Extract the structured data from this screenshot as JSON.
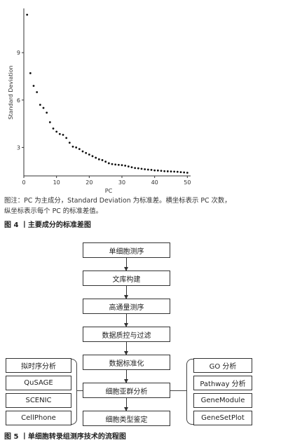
{
  "chart_data": {
    "type": "scatter",
    "title": "",
    "xlabel": "PC",
    "ylabel": "Standard Deviation",
    "xlim": [
      0,
      51
    ],
    "ylim": [
      1.2,
      11.8
    ],
    "xticks": [
      0,
      10,
      20,
      30,
      40,
      50
    ],
    "yticks": [
      3,
      6,
      9
    ],
    "grid": false,
    "x": [
      1,
      2,
      3,
      4,
      5,
      6,
      7,
      8,
      9,
      10,
      11,
      12,
      13,
      14,
      15,
      16,
      17,
      18,
      19,
      20,
      21,
      22,
      23,
      24,
      25,
      26,
      27,
      28,
      29,
      30,
      31,
      32,
      33,
      34,
      35,
      36,
      37,
      38,
      39,
      40,
      41,
      42,
      43,
      44,
      45,
      46,
      47,
      48,
      49,
      50
    ],
    "y": [
      11.4,
      7.7,
      6.9,
      6.5,
      5.7,
      5.5,
      5.2,
      4.6,
      4.2,
      4.0,
      3.85,
      3.8,
      3.6,
      3.3,
      3.05,
      3.0,
      2.9,
      2.75,
      2.65,
      2.55,
      2.45,
      2.35,
      2.25,
      2.2,
      2.1,
      2.0,
      1.95,
      1.92,
      1.9,
      1.88,
      1.85,
      1.8,
      1.75,
      1.7,
      1.68,
      1.65,
      1.62,
      1.6,
      1.58,
      1.55,
      1.54,
      1.52,
      1.5,
      1.49,
      1.48,
      1.47,
      1.46,
      1.44,
      1.42,
      1.4
    ]
  },
  "fig4": {
    "note_line1": "图注：PC 为主成分，Standard Deviation 为标准差。横坐标表示 PC 次数，",
    "note_line2": "纵坐标表示每个 PC 的标准差值。",
    "title": "图 4  丨主要成分的标准差图"
  },
  "fig5": {
    "title": "图 5  丨单细胞转录组测序技术的流程图",
    "main_steps": [
      "单细胞测序",
      "文库构建",
      "高通量测序",
      "数据质控与过滤",
      "数据标准化",
      "细胞亚群分析",
      "细胞类型鉴定"
    ],
    "left_tools": [
      "拟时序分析",
      "QuSAGE",
      "SCENIC",
      "CellPhone"
    ],
    "right_tools": [
      "GO 分析",
      "Pathway 分析",
      "GeneModule",
      "GeneSetPlot"
    ]
  }
}
